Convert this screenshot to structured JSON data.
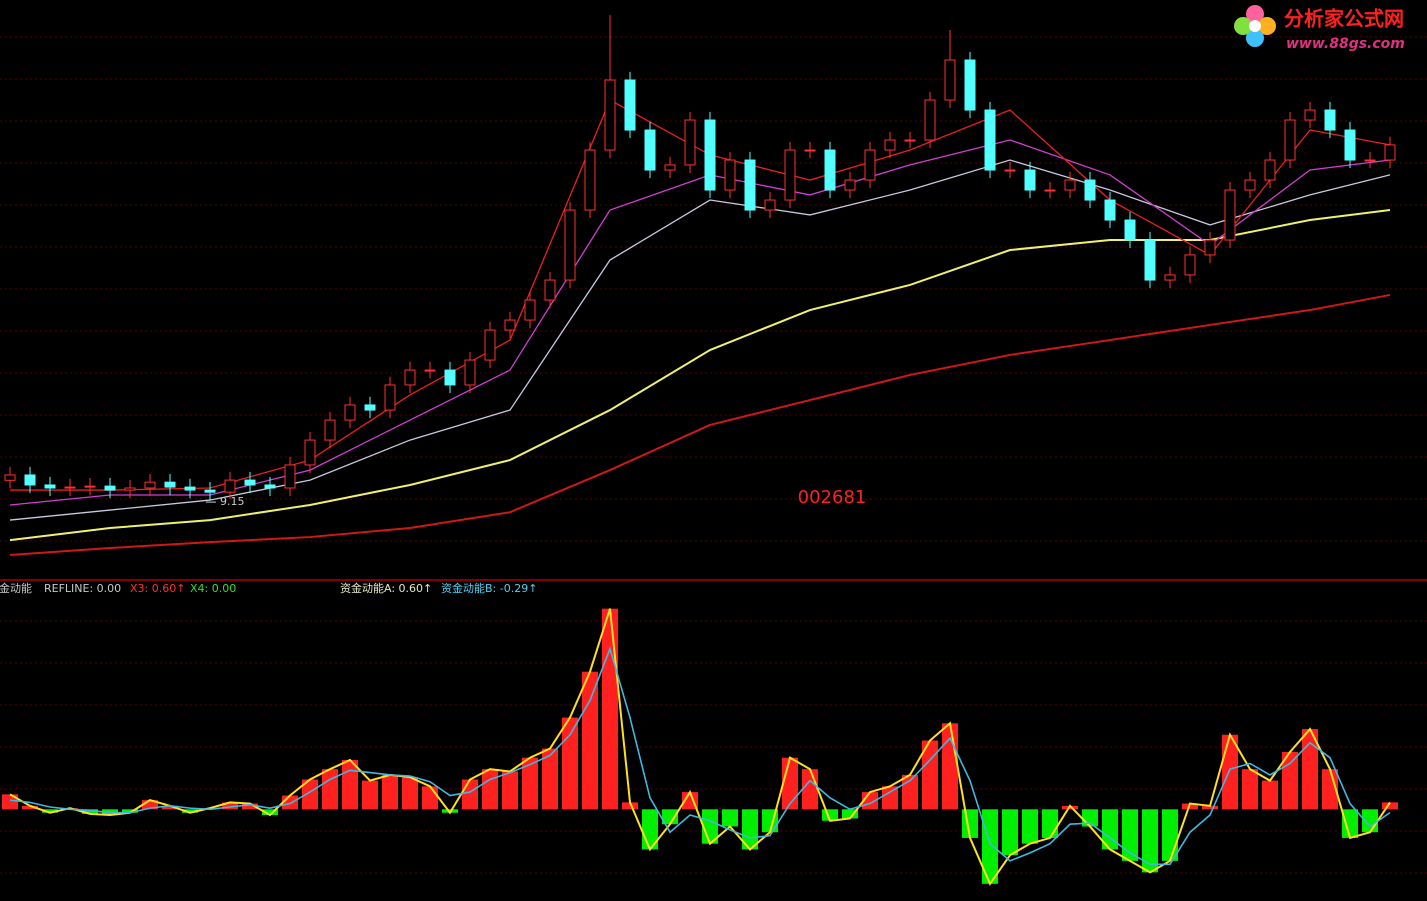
{
  "logo": {
    "title": "分析家公式网",
    "url": "www.88gs.com"
  },
  "chart_data": [
    {
      "type": "candlestick",
      "label": "002681",
      "ylim": [
        5.8,
        30.65
      ],
      "up_color": "#ff3030",
      "down_color": "#54ffff",
      "open": [
        10.0,
        10.23,
        9.8,
        9.67,
        9.71,
        9.75,
        9.58,
        9.67,
        9.92,
        9.71,
        9.58,
        9.49,
        10.01,
        9.8,
        9.67,
        10.66,
        11.73,
        12.59,
        13.24,
        13.02,
        14.1,
        14.74,
        14.74,
        14.1,
        15.17,
        16.46,
        16.89,
        17.75,
        18.61,
        21.62,
        24.2,
        27.21,
        25.06,
        23.34,
        23.56,
        25.49,
        22.48,
        23.77,
        21.62,
        22.05,
        24.2,
        24.2,
        22.48,
        22.91,
        24.2,
        24.63,
        24.63,
        26.35,
        28.07,
        25.92,
        23.34,
        23.34,
        22.48,
        22.48,
        22.91,
        22.05,
        21.19,
        20.33,
        18.61,
        18.83,
        19.69,
        20.33,
        22.48,
        22.91,
        23.77,
        25.49,
        25.92,
        25.06,
        23.77,
        23.77
      ],
      "high": [
        10.58,
        10.58,
        10.15,
        10.06,
        10.1,
        10.1,
        10.02,
        10.27,
        10.27,
        10.06,
        9.93,
        10.36,
        10.36,
        10.15,
        11.01,
        12.08,
        12.94,
        13.59,
        13.59,
        14.45,
        15.09,
        15.09,
        15.09,
        15.52,
        16.81,
        17.24,
        18.1,
        18.96,
        21.97,
        24.55,
        30.0,
        27.56,
        25.41,
        23.91,
        25.84,
        25.84,
        24.12,
        24.12,
        22.4,
        24.55,
        24.55,
        24.55,
        23.26,
        24.55,
        24.98,
        24.98,
        26.7,
        29.36,
        28.42,
        26.27,
        23.69,
        23.69,
        22.83,
        23.26,
        23.26,
        22.4,
        21.54,
        20.68,
        19.18,
        20.04,
        20.68,
        22.83,
        23.26,
        24.12,
        25.84,
        26.27,
        26.27,
        25.41,
        24.12,
        24.77
      ],
      "low": [
        9.65,
        9.45,
        9.32,
        9.32,
        9.36,
        9.23,
        9.23,
        9.32,
        9.36,
        9.23,
        9.15,
        9.2,
        9.45,
        9.32,
        9.32,
        10.31,
        11.38,
        12.24,
        12.67,
        12.67,
        13.75,
        14.39,
        13.75,
        13.75,
        14.82,
        16.11,
        16.54,
        17.4,
        18.26,
        21.27,
        23.85,
        24.71,
        22.99,
        22.99,
        23.21,
        22.13,
        22.13,
        21.27,
        21.27,
        21.7,
        23.85,
        22.13,
        22.13,
        22.56,
        23.85,
        24.28,
        24.28,
        26.0,
        25.57,
        22.99,
        22.99,
        22.13,
        22.13,
        22.13,
        21.7,
        20.84,
        19.98,
        18.26,
        18.26,
        18.48,
        19.34,
        19.98,
        22.13,
        22.56,
        23.42,
        25.14,
        24.71,
        23.42,
        23.42,
        23.42
      ],
      "close": [
        10.23,
        9.8,
        9.67,
        9.71,
        9.75,
        9.58,
        9.67,
        9.92,
        9.71,
        9.58,
        9.49,
        10.01,
        9.8,
        9.67,
        10.66,
        11.73,
        12.59,
        13.24,
        13.02,
        14.1,
        14.74,
        14.74,
        14.1,
        15.17,
        16.46,
        16.89,
        17.75,
        18.61,
        21.62,
        24.2,
        27.21,
        25.06,
        23.34,
        23.56,
        25.49,
        22.48,
        23.77,
        21.62,
        22.05,
        24.2,
        24.2,
        22.48,
        22.91,
        24.2,
        24.63,
        24.63,
        26.35,
        28.07,
        25.92,
        23.34,
        23.34,
        22.48,
        22.48,
        22.91,
        22.05,
        21.19,
        20.33,
        18.61,
        18.83,
        19.69,
        20.33,
        22.48,
        22.91,
        23.77,
        25.49,
        25.92,
        25.06,
        23.77,
        23.77,
        24.42
      ],
      "series": [
        {
          "color": "#f0f070",
          "x": [
            0,
            5,
            10,
            15,
            20,
            25,
            30,
            35,
            40,
            45,
            50,
            55,
            60,
            65,
            69
          ],
          "values": [
            7.43,
            7.95,
            8.29,
            8.94,
            9.8,
            10.87,
            13.02,
            15.6,
            17.32,
            18.4,
            19.9,
            20.33,
            20.33,
            21.19,
            21.62
          ]
        },
        {
          "color": "#d01818",
          "x": [
            0,
            5,
            10,
            15,
            20,
            25,
            30,
            35,
            40,
            45,
            50,
            55,
            60,
            65,
            69
          ],
          "values": [
            6.79,
            7.09,
            7.34,
            7.56,
            7.95,
            8.63,
            10.44,
            12.38,
            13.45,
            14.53,
            15.39,
            16.03,
            16.68,
            17.32,
            17.97
          ]
        },
        {
          "color": "#c8c8e0",
          "x": [
            0,
            5,
            10,
            15,
            20,
            25,
            30,
            35,
            40,
            45,
            50,
            55,
            60,
            65,
            69
          ],
          "values": [
            8.29,
            8.72,
            9.15,
            10.01,
            11.73,
            13.02,
            19.47,
            22.05,
            21.41,
            22.48,
            23.77,
            22.48,
            20.98,
            22.27,
            23.13
          ]
        },
        {
          "color": "#d040d0",
          "x": [
            0,
            5,
            10,
            15,
            20,
            25,
            30,
            35,
            40,
            45,
            50,
            55,
            60,
            65,
            69
          ],
          "values": [
            8.94,
            9.37,
            9.37,
            10.44,
            12.59,
            14.74,
            21.62,
            23.13,
            22.27,
            23.56,
            24.63,
            23.13,
            20.12,
            23.34,
            23.77
          ]
        },
        {
          "color": "#e82020",
          "x": [
            0,
            5,
            10,
            15,
            20,
            25,
            30,
            35,
            40,
            45,
            50,
            55,
            60,
            65,
            69
          ],
          "values": [
            9.58,
            9.58,
            9.67,
            10.87,
            13.67,
            16.03,
            26.35,
            23.99,
            22.91,
            24.2,
            25.92,
            22.05,
            19.69,
            25.06,
            24.42
          ]
        }
      ]
    },
    {
      "type": "bar",
      "ylim": [
        -8,
        20
      ],
      "pos_color": "#ff2020",
      "neg_color": "#00ee00",
      "outline_color": "#ffe020",
      "legend": [
        {
          "text": "资金动能",
          "color": "#c8c8c8"
        },
        {
          "text": "REFLINE: 0.00",
          "color": "#c8c8c8"
        },
        {
          "text": "X3: 0.60↑",
          "color": "#ff3030"
        },
        {
          "text": "X4: 0.00",
          "color": "#30e030"
        },
        {
          "text": "资金动能A: 0.60↑",
          "color": "#e8e8c0"
        },
        {
          "text": "资金动能B: -0.29↑",
          "color": "#50d0f0"
        }
      ],
      "values": [
        1.3,
        0.3,
        -0.3,
        0.1,
        -0.4,
        -0.5,
        -0.3,
        0.8,
        0.3,
        -0.3,
        0.1,
        0.6,
        0.5,
        -0.5,
        1.2,
        2.6,
        3.5,
        4.3,
        2.5,
        3.0,
        2.8,
        2.0,
        -0.3,
        2.6,
        3.5,
        3.3,
        4.5,
        5.3,
        8.0,
        12.0,
        17.5,
        0.6,
        -3.5,
        -1.3,
        1.5,
        -3.0,
        -1.5,
        -3.5,
        -2.0,
        4.5,
        3.5,
        -1.0,
        -0.8,
        1.5,
        2.0,
        3.0,
        6.0,
        7.5,
        -2.5,
        -6.5,
        -4.0,
        -3.0,
        -2.5,
        0.3,
        -1.5,
        -3.5,
        -4.5,
        -5.5,
        -4.5,
        0.5,
        0.3,
        6.5,
        3.5,
        2.5,
        5.0,
        7.0,
        3.5,
        -2.5,
        -2.0,
        0.6
      ],
      "series": [
        {
          "color": "#40b8e0",
          "values": [
            0.8,
            0.6,
            0.2,
            0.0,
            -0.1,
            -0.3,
            -0.3,
            0.1,
            0.3,
            0.1,
            0.0,
            0.2,
            0.4,
            0.1,
            0.5,
            1.5,
            2.6,
            3.4,
            3.2,
            3.0,
            2.9,
            2.4,
            1.2,
            1.5,
            2.6,
            3.2,
            3.9,
            4.7,
            6.5,
            9.5,
            14.0,
            8.0,
            1.0,
            -2.0,
            -0.5,
            -1.0,
            -1.8,
            -2.5,
            -2.3,
            0.5,
            2.5,
            1.0,
            0.0,
            0.5,
            1.5,
            2.5,
            4.3,
            6.2,
            2.5,
            -3.0,
            -4.5,
            -3.8,
            -3.0,
            -1.3,
            -1.2,
            -2.5,
            -3.8,
            -4.8,
            -4.8,
            -2.0,
            -0.5,
            3.5,
            4.0,
            3.0,
            4.0,
            5.8,
            4.5,
            0.5,
            -1.5,
            -0.29
          ]
        }
      ]
    }
  ]
}
